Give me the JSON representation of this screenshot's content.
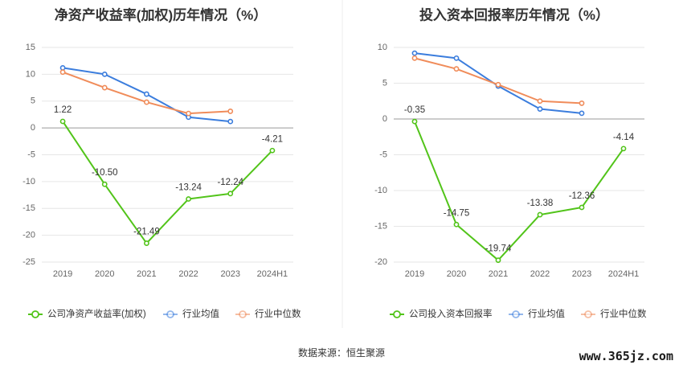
{
  "colors": {
    "company": "#52c41a",
    "industry_avg": "#3b7ddd",
    "industry_median": "#f08c5a",
    "grid": "#e6e6e6",
    "axis": "#cccccc"
  },
  "chart_data": [
    {
      "type": "line",
      "title": "净资产收益率(加权)历年情况（%）",
      "categories": [
        "2019",
        "2020",
        "2021",
        "2022",
        "2023",
        "2024H1"
      ],
      "ylim": [
        -25,
        15
      ],
      "yticks": [
        15,
        10,
        5,
        0,
        -5,
        -10,
        -15,
        -20,
        -25
      ],
      "grid": true,
      "legend": "bottom-left",
      "series": [
        {
          "name": "公司净资产收益率(加权)",
          "color_key": "company",
          "values": [
            1.22,
            -10.5,
            -21.49,
            -13.24,
            -12.24,
            -4.21
          ],
          "labels": [
            "1.22",
            "-10.50",
            "-21.49",
            "-13.24",
            "-12.24",
            "-4.21"
          ]
        },
        {
          "name": "行业均值",
          "color_key": "industry_avg",
          "values": [
            11.2,
            10.0,
            6.3,
            2.0,
            1.2,
            null
          ]
        },
        {
          "name": "行业中位数",
          "color_key": "industry_median",
          "values": [
            10.4,
            7.5,
            4.8,
            2.7,
            3.1,
            null
          ]
        }
      ]
    },
    {
      "type": "line",
      "title": "投入资本回报率历年情况（%）",
      "categories": [
        "2019",
        "2020",
        "2021",
        "2022",
        "2023",
        "2024H1"
      ],
      "ylim": [
        -20,
        10
      ],
      "yticks": [
        10,
        5,
        0,
        -5,
        -10,
        -15,
        -20
      ],
      "grid": true,
      "legend": "bottom-left",
      "series": [
        {
          "name": "公司投入资本回报率",
          "color_key": "company",
          "values": [
            -0.35,
            -14.75,
            -19.74,
            -13.38,
            -12.36,
            -4.14
          ],
          "labels": [
            "-0.35",
            "-14.75",
            "-19.74",
            "-13.38",
            "-12.36",
            "-4.14"
          ]
        },
        {
          "name": "行业均值",
          "color_key": "industry_avg",
          "values": [
            9.2,
            8.5,
            4.6,
            1.4,
            0.8,
            null
          ]
        },
        {
          "name": "行业中位数",
          "color_key": "industry_median",
          "values": [
            8.5,
            7.0,
            4.8,
            2.5,
            2.2,
            null
          ]
        }
      ]
    }
  ],
  "footer": {
    "source": "数据来源：恒生聚源",
    "watermark": "www.365jz.com"
  }
}
